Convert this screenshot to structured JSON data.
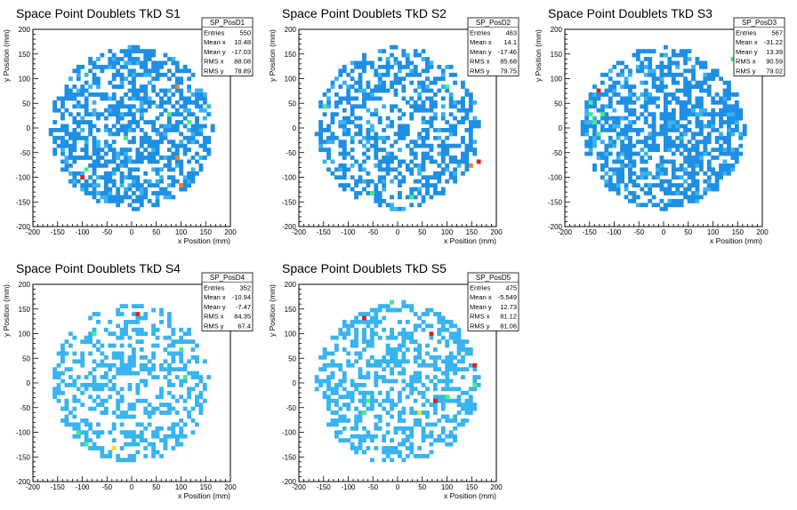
{
  "palette": {
    "cyan": "#38b4f0",
    "blue": "#1f8fe3",
    "green": "#40f080",
    "lime": "#9ff02a",
    "yellow": "#f0e020",
    "orange": "#f08020",
    "red": "#e02020",
    "axis": "#000000",
    "frame": "#000000"
  },
  "chart_data": [
    {
      "type": "heatmap",
      "title": "Space Point Doublets TkD S1",
      "xlabel": "x Position (mm)",
      "ylabel": "y Position (mm)",
      "xlim": [
        -200,
        200
      ],
      "ylim": [
        -200,
        200
      ],
      "xticks": [
        "-200",
        "-150",
        "-100",
        "-50",
        "0",
        "50",
        "100",
        "150",
        "200"
      ],
      "yticks": [
        "-200",
        "-150",
        "-100",
        "-50",
        "0",
        "50",
        "100",
        "150",
        "200"
      ],
      "legend_position": "top-right",
      "stats": {
        "name": "SP_PosD1",
        "rows": [
          {
            "label": "Entries",
            "value": "550"
          },
          {
            "label": "Mean x",
            "value": "10.48"
          },
          {
            "label": "Mean y",
            "value": "-17.03"
          },
          {
            "label": "RMS x",
            "value": "88.08"
          },
          {
            "label": "RMS y",
            "value": "78.89"
          }
        ]
      },
      "bin_size": 8,
      "radius": 165,
      "fill_fraction": 0.55,
      "seed": 11,
      "hot_points": [
        {
          "x": -100,
          "y": -100,
          "level": "red"
        },
        {
          "x": 90,
          "y": -60,
          "level": "orange"
        },
        {
          "x": 95,
          "y": 80,
          "level": "orange"
        },
        {
          "x": 100,
          "y": -115,
          "level": "orange"
        },
        {
          "x": -95,
          "y": -85,
          "level": "green"
        },
        {
          "x": 75,
          "y": 30,
          "level": "green"
        },
        {
          "x": -10,
          "y": -20,
          "level": "green"
        },
        {
          "x": 115,
          "y": 15,
          "level": "green"
        }
      ]
    },
    {
      "type": "heatmap",
      "title": "Space Point Doublets TkD S2",
      "xlabel": "x Position (mm)",
      "ylabel": "y Position (mm)",
      "xlim": [
        -200,
        200
      ],
      "ylim": [
        -200,
        200
      ],
      "xticks": [
        "-200",
        "-150",
        "-100",
        "-50",
        "0",
        "50",
        "100",
        "150",
        "200"
      ],
      "yticks": [
        "-200",
        "-150",
        "-100",
        "-50",
        "0",
        "50",
        "100",
        "150",
        "200"
      ],
      "legend_position": "top-right",
      "stats": {
        "name": "SP_PosD2",
        "rows": [
          {
            "label": "Entries",
            "value": "463"
          },
          {
            "label": "Mean x",
            "value": "14.1"
          },
          {
            "label": "Mean y",
            "value": "-17.46"
          },
          {
            "label": "RMS x",
            "value": "85.68"
          },
          {
            "label": "RMS y",
            "value": "79.75"
          }
        ]
      },
      "bin_size": 8,
      "radius": 165,
      "fill_fraction": 0.46,
      "seed": 23,
      "hot_points": [
        {
          "x": 160,
          "y": -70,
          "level": "red"
        },
        {
          "x": 150,
          "y": -80,
          "level": "orange"
        },
        {
          "x": -150,
          "y": 40,
          "level": "green"
        },
        {
          "x": 100,
          "y": 85,
          "level": "green"
        },
        {
          "x": 25,
          "y": -140,
          "level": "green"
        },
        {
          "x": -50,
          "y": -130,
          "level": "green"
        }
      ]
    },
    {
      "type": "heatmap",
      "title": "Space Point Doublets TkD S3",
      "xlabel": "x Position (mm)",
      "ylabel": "y Position (mm)",
      "xlim": [
        -200,
        200
      ],
      "ylim": [
        -200,
        200
      ],
      "xticks": [
        "-200",
        "-150",
        "-100",
        "-50",
        "0",
        "50",
        "100",
        "150",
        "200"
      ],
      "yticks": [
        "-200",
        "-150",
        "-100",
        "-50",
        "0",
        "50",
        "100",
        "150",
        "200"
      ],
      "legend_position": "top-right",
      "stats": {
        "name": "SP_PosD3",
        "rows": [
          {
            "label": "Entries",
            "value": "567"
          },
          {
            "label": "Mean x",
            "value": "-31.22"
          },
          {
            "label": "Mean y",
            "value": "13.39"
          },
          {
            "label": "RMS x",
            "value": "90.59"
          },
          {
            "label": "RMS y",
            "value": "79.02"
          }
        ]
      },
      "bin_size": 8,
      "radius": 165,
      "fill_fraction": 0.56,
      "seed": 37,
      "hot_points": [
        {
          "x": -130,
          "y": 75,
          "level": "red"
        },
        {
          "x": -145,
          "y": 30,
          "level": "green"
        },
        {
          "x": -140,
          "y": 10,
          "level": "green"
        },
        {
          "x": -150,
          "y": 50,
          "level": "green"
        },
        {
          "x": -135,
          "y": -10,
          "level": "green"
        },
        {
          "x": -125,
          "y": 25,
          "level": "green"
        },
        {
          "x": 140,
          "y": 140,
          "level": "green"
        }
      ]
    },
    {
      "type": "heatmap",
      "title": "Space Point Doublets TkD S4",
      "xlabel": "x Position (mm)",
      "ylabel": "y Position (mm)",
      "xlim": [
        -200,
        200
      ],
      "ylim": [
        -200,
        200
      ],
      "xticks": [
        "-200",
        "-150",
        "-100",
        "-50",
        "0",
        "50",
        "100",
        "150",
        "200"
      ],
      "yticks": [
        "-200",
        "-150",
        "-100",
        "-50",
        "0",
        "50",
        "100",
        "150",
        "200"
      ],
      "legend_position": "top-right",
      "stats": {
        "name": "SP_PosD4",
        "rows": [
          {
            "label": "Entries",
            "value": "352"
          },
          {
            "label": "Mean x",
            "value": "-10.94"
          },
          {
            "label": "Mean y",
            "value": "-7.47"
          },
          {
            "label": "RMS x",
            "value": "84.35"
          },
          {
            "label": "RMS y",
            "value": "67.4"
          }
        ]
      },
      "bin_size": 8,
      "radius": 160,
      "fill_fraction": 0.36,
      "seed": 53,
      "hot_points": [
        {
          "x": 10,
          "y": 140,
          "level": "red"
        },
        {
          "x": -80,
          "y": 100,
          "level": "green"
        },
        {
          "x": -95,
          "y": -125,
          "level": "green"
        },
        {
          "x": -105,
          "y": -100,
          "level": "green"
        },
        {
          "x": -40,
          "y": -130,
          "level": "yellow"
        },
        {
          "x": 100,
          "y": 70,
          "level": "green"
        },
        {
          "x": 110,
          "y": 10,
          "level": "green"
        }
      ]
    },
    {
      "type": "heatmap",
      "title": "Space Point Doublets TkD S5",
      "xlabel": "x Position (mm)",
      "ylabel": "y Position (mm)",
      "xlim": [
        -200,
        200
      ],
      "ylim": [
        -200,
        200
      ],
      "xticks": [
        "-200",
        "-150",
        "-100",
        "-50",
        "0",
        "50",
        "100",
        "150",
        "200"
      ],
      "yticks": [
        "-200",
        "-150",
        "-100",
        "-50",
        "0",
        "50",
        "100",
        "150",
        "200"
      ],
      "legend_position": "top-right",
      "stats": {
        "name": "SP_PosD5",
        "rows": [
          {
            "label": "Entries",
            "value": "475"
          },
          {
            "label": "Mean x",
            "value": "-5.549"
          },
          {
            "label": "Mean y",
            "value": "12.73"
          },
          {
            "label": "RMS x",
            "value": "81.12"
          },
          {
            "label": "RMS y",
            "value": "81.06"
          }
        ]
      },
      "bin_size": 8,
      "radius": 165,
      "fill_fraction": 0.45,
      "seed": 71,
      "hot_points": [
        {
          "x": -70,
          "y": 130,
          "level": "red"
        },
        {
          "x": 70,
          "y": 100,
          "level": "red"
        },
        {
          "x": 155,
          "y": 35,
          "level": "red"
        },
        {
          "x": 75,
          "y": -35,
          "level": "red"
        },
        {
          "x": -60,
          "y": -40,
          "level": "green"
        },
        {
          "x": -70,
          "y": -60,
          "level": "green"
        },
        {
          "x": 40,
          "y": -60,
          "level": "yellow"
        },
        {
          "x": 100,
          "y": -30,
          "level": "green"
        },
        {
          "x": -10,
          "y": 160,
          "level": "green"
        },
        {
          "x": 155,
          "y": -5,
          "level": "green"
        }
      ]
    }
  ]
}
